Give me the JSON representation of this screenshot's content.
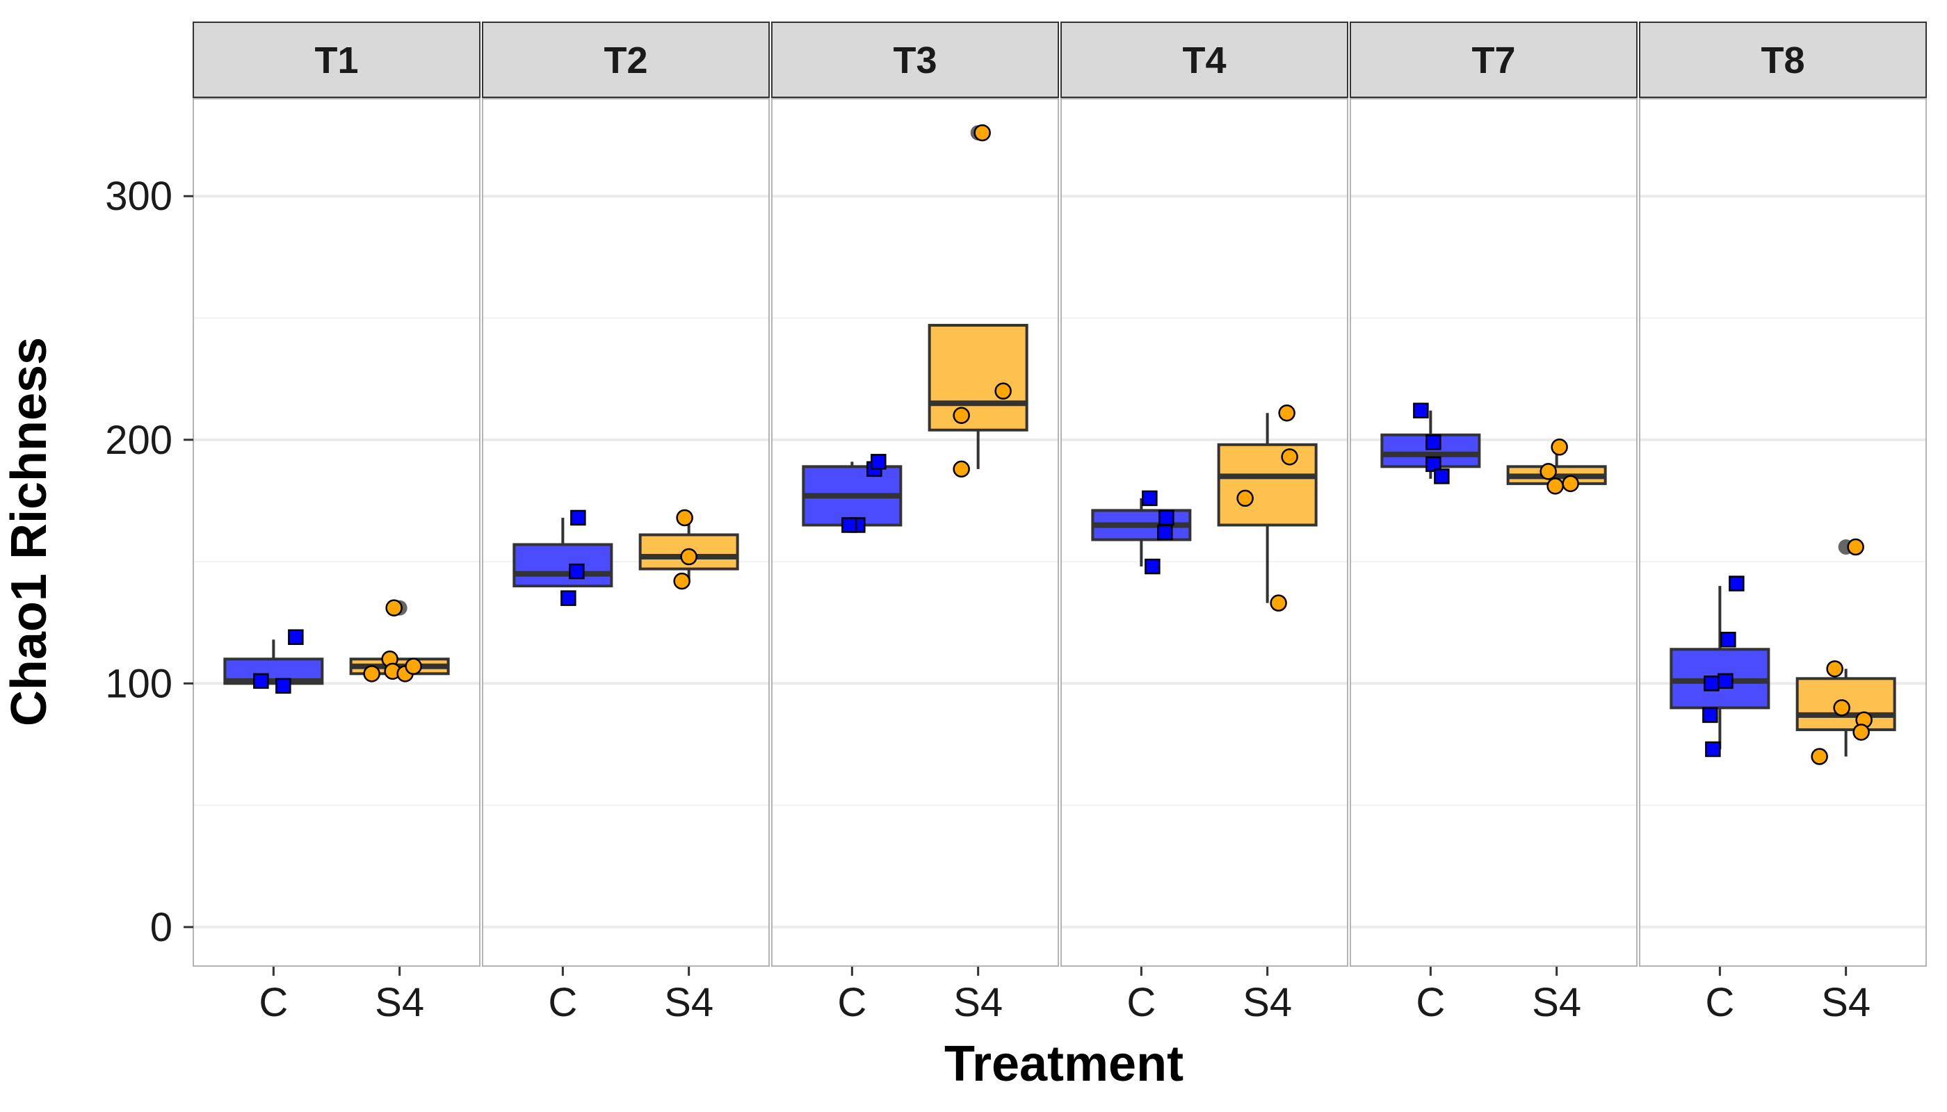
{
  "chart_data": {
    "type": "boxplot",
    "xlabel": "Treatment",
    "ylabel": "Chao1 Richness",
    "ylim": [
      -16,
      340
    ],
    "yticks": [
      0,
      100,
      200,
      300
    ],
    "categories": [
      "C",
      "S4"
    ],
    "colors": {
      "C": "#4c4cff",
      "S4": "#ffc14d",
      "C_point": "#0000ff",
      "S4_point": "#ffa500",
      "outlier": "#555555"
    },
    "facets": [
      {
        "label": "T1",
        "groups": [
          {
            "name": "C",
            "min": 100,
            "q1": 100,
            "median": 101,
            "q3": 110,
            "max": 118,
            "outliers": [],
            "points": [
              101,
              99,
              119
            ]
          },
          {
            "name": "S4",
            "min": 104,
            "q1": 104,
            "median": 107,
            "q3": 110,
            "max": 110,
            "outliers": [
              131
            ],
            "points": [
              110,
              104,
              105,
              104,
              107,
              131
            ]
          }
        ]
      },
      {
        "label": "T2",
        "groups": [
          {
            "name": "C",
            "min": 140,
            "q1": 140,
            "median": 145,
            "q3": 157,
            "max": 168,
            "outliers": [],
            "points": [
              168,
              146,
              135
            ]
          },
          {
            "name": "S4",
            "min": 142,
            "q1": 147,
            "median": 152,
            "q3": 161,
            "max": 168,
            "outliers": [],
            "points": [
              168,
              152,
              142
            ]
          }
        ]
      },
      {
        "label": "T3",
        "groups": [
          {
            "name": "C",
            "min": 165,
            "q1": 165,
            "median": 177,
            "q3": 189,
            "max": 191,
            "outliers": [],
            "points": [
              165,
              165,
              188,
              191
            ]
          },
          {
            "name": "S4",
            "min": 188,
            "q1": 204,
            "median": 215,
            "q3": 247,
            "max": 247,
            "outliers": [
              326
            ],
            "points": [
              326,
              220,
              210,
              188
            ]
          }
        ]
      },
      {
        "label": "T4",
        "groups": [
          {
            "name": "C",
            "min": 148,
            "q1": 159,
            "median": 165,
            "q3": 171,
            "max": 176,
            "outliers": [],
            "points": [
              176,
              168,
              162,
              148
            ]
          },
          {
            "name": "S4",
            "min": 133,
            "q1": 165,
            "median": 185,
            "q3": 198,
            "max": 211,
            "outliers": [],
            "points": [
              211,
              193,
              176,
              133
            ]
          }
        ]
      },
      {
        "label": "T7",
        "groups": [
          {
            "name": "C",
            "min": 184,
            "q1": 189,
            "median": 194,
            "q3": 202,
            "max": 212,
            "outliers": [],
            "points": [
              212,
              199,
              190,
              185
            ]
          },
          {
            "name": "S4",
            "min": 181,
            "q1": 182,
            "median": 185,
            "q3": 189,
            "max": 197,
            "outliers": [],
            "points": [
              197,
              187,
              181,
              182
            ]
          }
        ]
      },
      {
        "label": "T8",
        "groups": [
          {
            "name": "C",
            "min": 73,
            "q1": 90,
            "median": 101,
            "q3": 114,
            "max": 140,
            "outliers": [],
            "points": [
              141,
              118,
              101,
              100,
              87,
              73
            ]
          },
          {
            "name": "S4",
            "min": 70,
            "q1": 81,
            "median": 87,
            "q3": 102,
            "max": 106,
            "outliers": [
              156
            ],
            "points": [
              156,
              106,
              90,
              85,
              80,
              70
            ]
          }
        ]
      }
    ]
  }
}
